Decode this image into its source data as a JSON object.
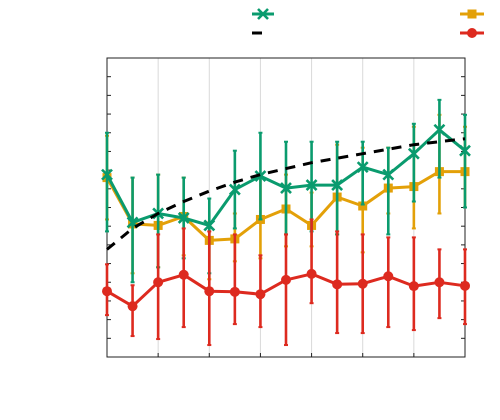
{
  "chart_data": {
    "type": "line",
    "title": "",
    "xlabel": "",
    "ylabel": "",
    "x": [
      0,
      1,
      2,
      3,
      4,
      5,
      6,
      7,
      8,
      9,
      10,
      11,
      12,
      13,
      14
    ],
    "xlim": [
      0,
      14
    ],
    "ylim": [
      0,
      1
    ],
    "grid": "vertical",
    "legend_position": "top",
    "series": [
      {
        "color": "#0a9b6e",
        "marker": "x",
        "style": "solid",
        "values": [
          0.61,
          0.45,
          0.48,
          0.465,
          0.44,
          0.56,
          0.605,
          0.565,
          0.575,
          0.575,
          0.635,
          0.61,
          0.68,
          0.76,
          0.69
        ],
        "error_low": [
          0.42,
          0.25,
          0.3,
          0.33,
          0.28,
          0.43,
          0.46,
          0.41,
          0.42,
          0.41,
          0.51,
          0.41,
          0.52,
          0.6,
          0.5
        ],
        "error_high": [
          0.75,
          0.6,
          0.61,
          0.6,
          0.53,
          0.69,
          0.75,
          0.72,
          0.72,
          0.72,
          0.72,
          0.7,
          0.78,
          0.86,
          0.81
        ]
      },
      {
        "color": "#000000",
        "marker": "none",
        "style": "dashed",
        "values": [
          0.36,
          0.43,
          0.48,
          0.52,
          0.555,
          0.585,
          0.61,
          0.63,
          0.65,
          0.665,
          0.68,
          0.695,
          0.71,
          0.72,
          0.73
        ],
        "error_low": [],
        "error_high": []
      },
      {
        "color": "#e3a008",
        "marker": "square",
        "style": "solid",
        "values": [
          0.6,
          0.445,
          0.44,
          0.47,
          0.39,
          0.395,
          0.46,
          0.495,
          0.44,
          0.535,
          0.505,
          0.565,
          0.57,
          0.62,
          0.62
        ],
        "error_low": [
          0.46,
          0.28,
          0.3,
          0.34,
          0.26,
          0.32,
          0.33,
          0.37,
          0.37,
          0.41,
          0.35,
          0.48,
          0.43,
          0.48,
          0.5
        ],
        "error_high": [
          0.74,
          0.6,
          0.61,
          0.6,
          0.45,
          0.48,
          0.6,
          0.61,
          0.55,
          0.71,
          0.7,
          0.7,
          0.77,
          0.81,
          0.77
        ]
      },
      {
        "color": "#dd2a1f",
        "marker": "circle",
        "style": "solid",
        "values": [
          0.22,
          0.17,
          0.25,
          0.275,
          0.22,
          0.218,
          0.21,
          0.258,
          0.278,
          0.243,
          0.245,
          0.27,
          0.237,
          0.25,
          0.238
        ],
        "error_low": [
          0.14,
          0.07,
          0.06,
          0.1,
          0.04,
          0.11,
          0.1,
          0.04,
          0.18,
          0.08,
          0.08,
          0.1,
          0.09,
          0.13,
          0.11
        ],
        "error_high": [
          0.31,
          0.24,
          0.41,
          0.43,
          0.42,
          0.41,
          0.34,
          0.41,
          0.46,
          0.42,
          0.41,
          0.4,
          0.4,
          0.36,
          0.36
        ]
      }
    ]
  }
}
